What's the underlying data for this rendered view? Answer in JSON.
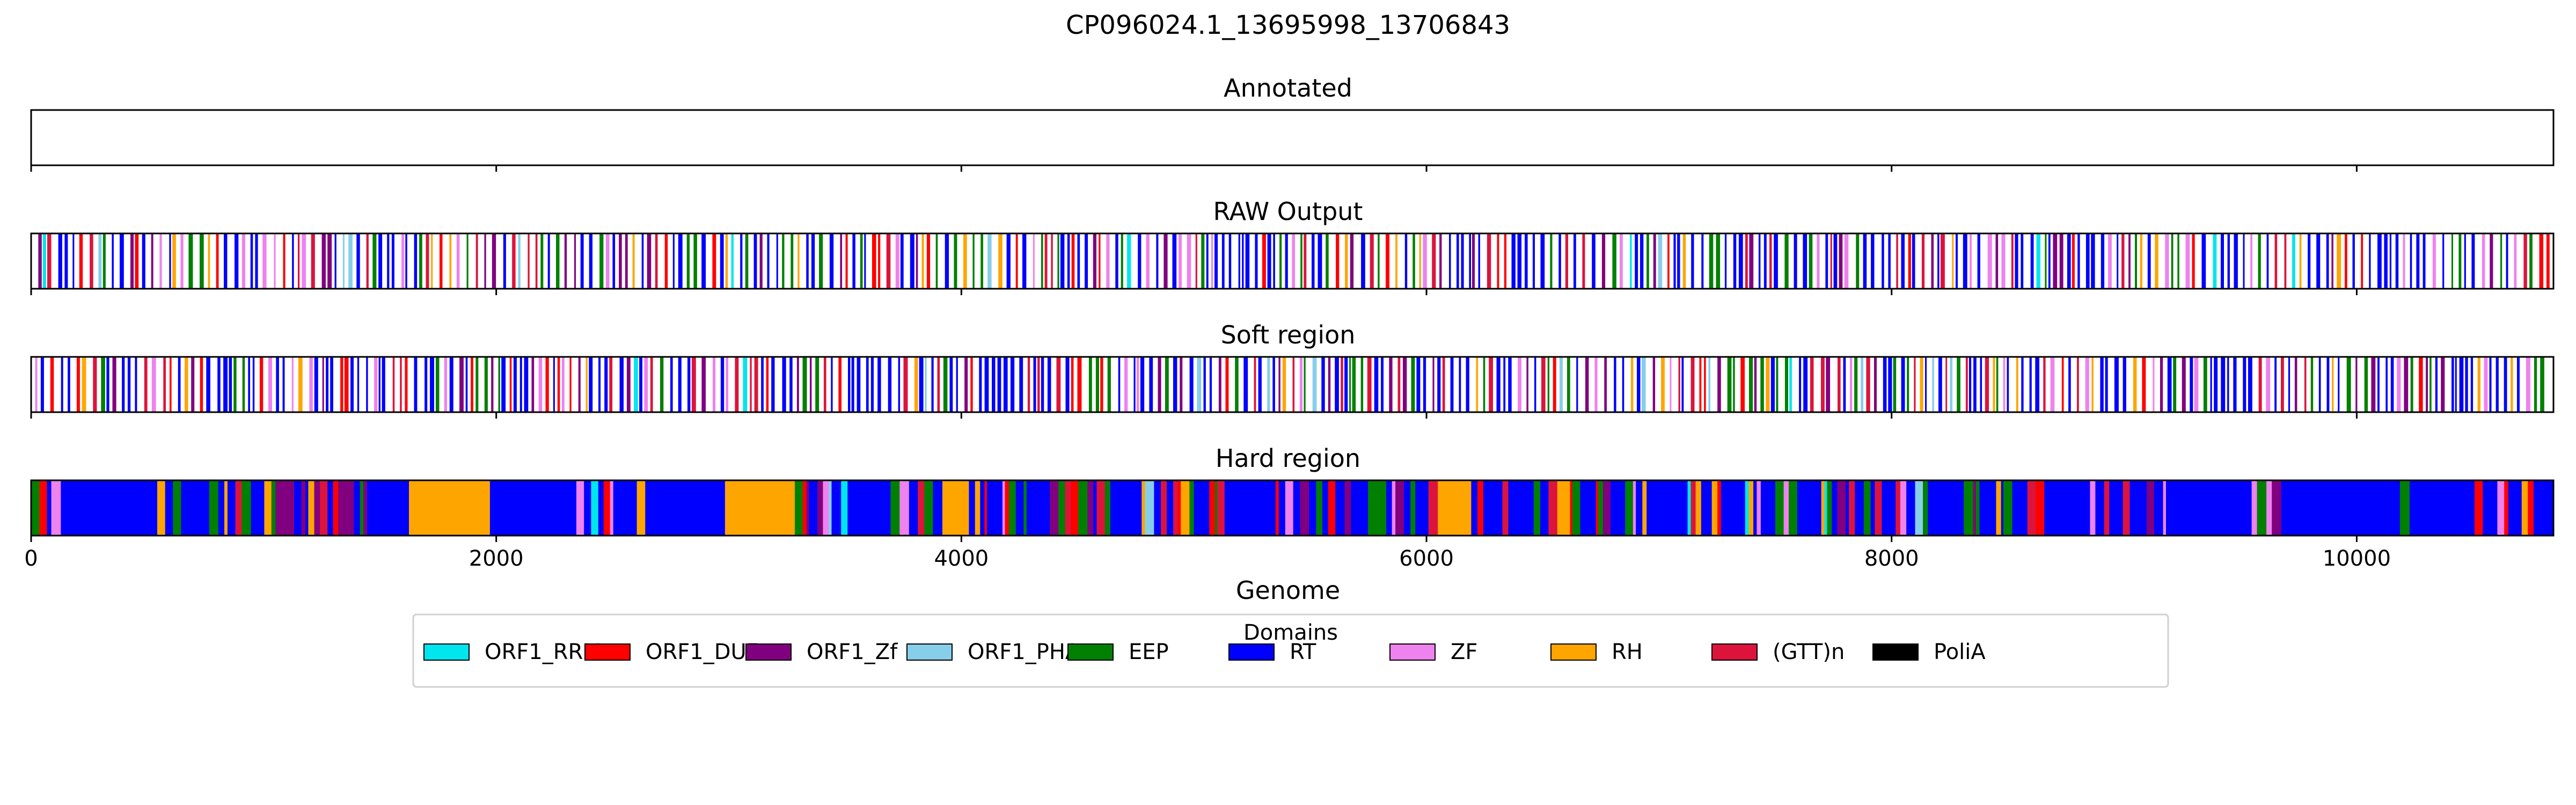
{
  "chart_data": {
    "type": "bar",
    "title": "CP096024.1_13695998_13706843",
    "xlabel": "Genome",
    "xlim": [
      0,
      10846
    ],
    "xticks": [
      0,
      2000,
      4000,
      6000,
      8000,
      10000
    ],
    "xtick_labels": [
      "0",
      "2000",
      "4000",
      "6000",
      "8000",
      "10000"
    ],
    "panels": [
      {
        "title": "Annotated",
        "style": "empty"
      },
      {
        "title": "RAW Output",
        "style": "sparse"
      },
      {
        "title": "Soft region",
        "style": "sparse"
      },
      {
        "title": "Hard region",
        "style": "dense"
      }
    ],
    "legend": {
      "title": "Domains",
      "placement": "bottom-center",
      "entries": [
        {
          "name": "ORF1_RRM",
          "color": "#00e5ee"
        },
        {
          "name": "ORF1_DUF",
          "color": "#ff0000"
        },
        {
          "name": "ORF1_Zf",
          "color": "#800080"
        },
        {
          "name": "ORF1_PHA",
          "color": "#87ceeb"
        },
        {
          "name": "EEP",
          "color": "#008000"
        },
        {
          "name": "RT",
          "color": "#0000ff"
        },
        {
          "name": "ZF",
          "color": "#ee82ee"
        },
        {
          "name": "RH",
          "color": "#ffa500"
        },
        {
          "name": "(GTT)n",
          "color": "#dc143c"
        },
        {
          "name": "PoliA",
          "color": "#000000"
        }
      ]
    }
  }
}
